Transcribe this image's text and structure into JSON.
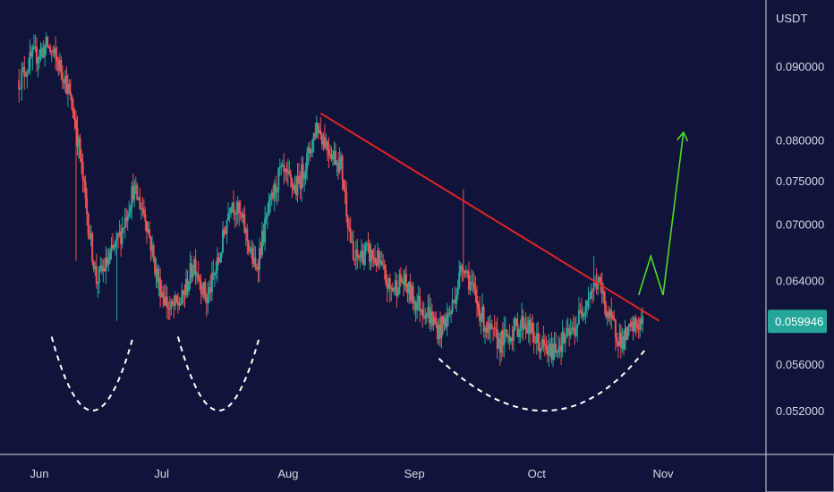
{
  "chart_data": {
    "type": "candlestick",
    "symbol_quote": "USDT",
    "x_ticks": [
      "Jun",
      "Jul",
      "Aug",
      "Sep",
      "Oct",
      "Nov"
    ],
    "y_ticks": [
      "0.090000",
      "0.080000",
      "0.075000",
      "0.070000",
      "0.064000",
      "0.056000",
      "0.052000"
    ],
    "y_tick_values": [
      0.09,
      0.08,
      0.075,
      0.07,
      0.064,
      0.056,
      0.052
    ],
    "y_scale": "log",
    "ylim": [
      0.0485,
      0.1
    ],
    "last_price": "0.059946",
    "last_price_value": 0.059946,
    "grid": false,
    "colors": {
      "background": "#10133a",
      "up": "#26a69a",
      "down": "#ef5350",
      "trendline": "#e02424",
      "projection": "#4cdc24",
      "pattern": "#ffffff",
      "badge": "#26a69a"
    },
    "price_path": [
      [
        "2024-05-27",
        0.088
      ],
      [
        "2024-05-30",
        0.091
      ],
      [
        "2024-06-03",
        0.093
      ],
      [
        "2024-06-07",
        0.089
      ],
      [
        "2024-06-10",
        0.082
      ],
      [
        "2024-06-13",
        0.07
      ],
      [
        "2024-06-15",
        0.064
      ],
      [
        "2024-06-18",
        0.066
      ],
      [
        "2024-06-21",
        0.069
      ],
      [
        "2024-06-24",
        0.074
      ],
      [
        "2024-06-27",
        0.071
      ],
      [
        "2024-06-30",
        0.064
      ],
      [
        "2024-07-03",
        0.061
      ],
      [
        "2024-07-06",
        0.062
      ],
      [
        "2024-07-09",
        0.066
      ],
      [
        "2024-07-12",
        0.062
      ],
      [
        "2024-07-15",
        0.066
      ],
      [
        "2024-07-18",
        0.073
      ],
      [
        "2024-07-21",
        0.07
      ],
      [
        "2024-07-24",
        0.065
      ],
      [
        "2024-07-27",
        0.071
      ],
      [
        "2024-07-30",
        0.076
      ],
      [
        "2024-08-03",
        0.074
      ],
      [
        "2024-08-06",
        0.078
      ],
      [
        "2024-08-08",
        0.082
      ],
      [
        "2024-08-11",
        0.079
      ],
      [
        "2024-08-14",
        0.077
      ],
      [
        "2024-08-17",
        0.066
      ],
      [
        "2024-08-20",
        0.067
      ],
      [
        "2024-08-23",
        0.066
      ],
      [
        "2024-08-26",
        0.063
      ],
      [
        "2024-08-29",
        0.064
      ],
      [
        "2024-09-01",
        0.062
      ],
      [
        "2024-09-04",
        0.061
      ],
      [
        "2024-09-07",
        0.059
      ],
      [
        "2024-09-10",
        0.061
      ],
      [
        "2024-09-13",
        0.066
      ],
      [
        "2024-09-16",
        0.062
      ],
      [
        "2024-09-19",
        0.059
      ],
      [
        "2024-09-22",
        0.058
      ],
      [
        "2024-09-25",
        0.059
      ],
      [
        "2024-09-28",
        0.06
      ],
      [
        "2024-10-01",
        0.058
      ],
      [
        "2024-10-04",
        0.057
      ],
      [
        "2024-10-07",
        0.058
      ],
      [
        "2024-10-10",
        0.059
      ],
      [
        "2024-10-13",
        0.062
      ],
      [
        "2024-10-16",
        0.064
      ],
      [
        "2024-10-19",
        0.06
      ],
      [
        "2024-10-22",
        0.058
      ],
      [
        "2024-10-25",
        0.0595
      ],
      [
        "2024-10-27",
        0.0599
      ]
    ],
    "spikes": [
      [
        "2024-06-10",
        0.066
      ],
      [
        "2024-06-20",
        0.06
      ],
      [
        "2024-08-09",
        0.083
      ],
      [
        "2024-09-13",
        0.074
      ],
      [
        "2024-10-15",
        0.0665
      ]
    ],
    "trendline": [
      [
        "2024-08-09",
        0.0835
      ],
      [
        "2024-10-31",
        0.06
      ]
    ],
    "projection": [
      [
        "2024-10-26",
        0.0625
      ],
      [
        "2024-10-29",
        0.0665
      ],
      [
        "2024-11-01",
        0.0625
      ],
      [
        "2024-11-06",
        0.081
      ]
    ],
    "pattern_curves": [
      [
        [
          "2024-06-04",
          0.0585
        ],
        [
          "2024-06-14",
          0.052
        ],
        [
          "2024-06-24",
          0.0585
        ]
      ],
      [
        [
          "2024-07-05",
          0.0585
        ],
        [
          "2024-07-15",
          0.052
        ],
        [
          "2024-07-25",
          0.0585
        ]
      ],
      [
        [
          "2024-09-07",
          0.0565
        ],
        [
          "2024-10-04",
          0.052
        ],
        [
          "2024-10-28",
          0.0575
        ]
      ]
    ]
  }
}
